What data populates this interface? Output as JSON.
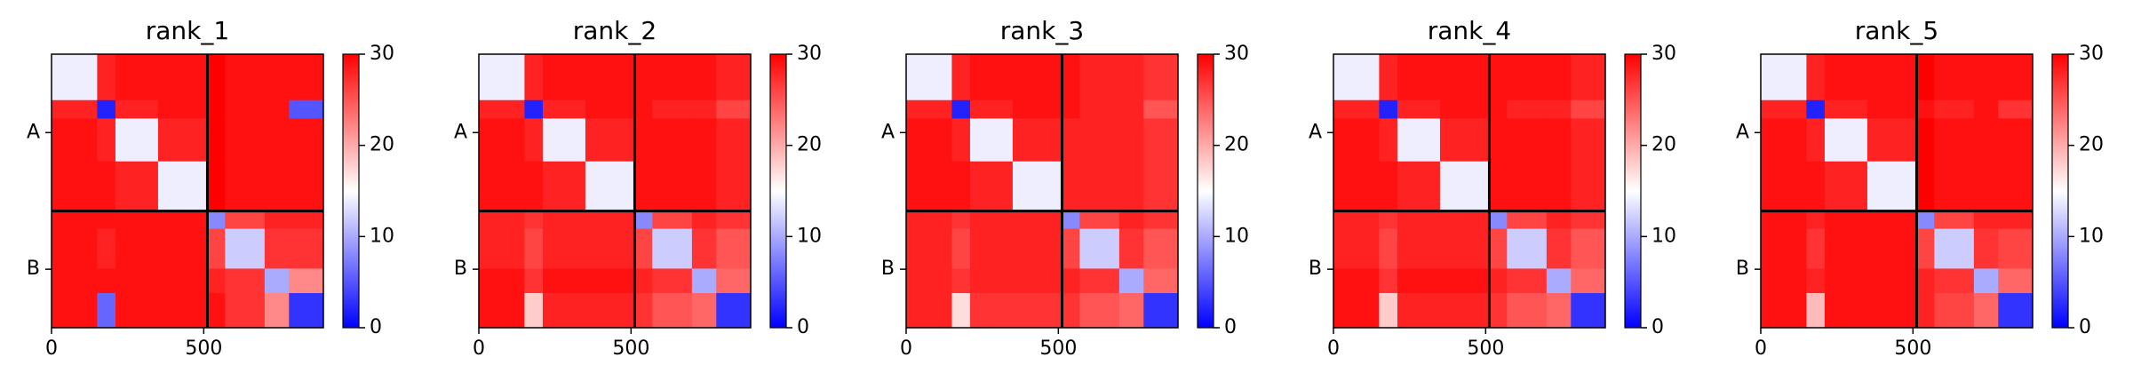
{
  "chart_data": [
    {
      "type": "heatmap",
      "title": "rank_1",
      "edges": [
        0,
        150,
        210,
        350,
        512,
        570,
        700,
        780,
        893
      ],
      "xlim": [
        0,
        893
      ],
      "ylim": [
        893,
        0
      ],
      "xticks": [
        0,
        500
      ],
      "yticks": [
        {
          "value": 256,
          "label": "A"
        },
        {
          "value": 702,
          "label": "B"
        }
      ],
      "boundaries": [
        512
      ],
      "colors": [
        "#0000ff",
        "#ffffff",
        "#ff0000"
      ],
      "clim": [
        0,
        30
      ],
      "cticks": [
        0,
        10,
        20,
        30
      ],
      "z": [
        [
          14,
          28,
          29,
          29,
          30,
          29,
          29,
          29
        ],
        [
          28,
          2,
          28,
          29,
          30,
          29,
          29,
          5
        ],
        [
          29,
          28,
          14,
          28,
          30,
          29,
          29,
          29
        ],
        [
          29,
          29,
          28,
          14,
          30,
          29,
          29,
          29
        ],
        [
          29,
          29,
          29,
          29,
          8,
          26,
          28,
          28
        ],
        [
          29,
          28,
          29,
          29,
          26,
          12,
          27,
          27
        ],
        [
          29,
          29,
          29,
          29,
          28,
          27,
          10,
          22
        ],
        [
          29,
          6,
          29,
          29,
          29,
          27,
          22,
          3
        ]
      ]
    },
    {
      "type": "heatmap",
      "title": "rank_2",
      "edges": [
        0,
        150,
        210,
        350,
        512,
        570,
        700,
        780,
        893
      ],
      "xlim": [
        0,
        893
      ],
      "ylim": [
        893,
        0
      ],
      "xticks": [
        0,
        500
      ],
      "yticks": [
        {
          "value": 256,
          "label": "A"
        },
        {
          "value": 702,
          "label": "B"
        }
      ],
      "boundaries": [
        512
      ],
      "colors": [
        "#0000ff",
        "#ffffff",
        "#ff0000"
      ],
      "clim": [
        0,
        30
      ],
      "cticks": [
        0,
        10,
        20,
        30
      ],
      "z": [
        [
          14,
          28,
          29,
          29,
          29,
          29,
          29,
          28
        ],
        [
          28,
          2,
          28,
          29,
          29,
          28,
          28,
          26
        ],
        [
          29,
          28,
          14,
          28,
          29,
          29,
          29,
          28
        ],
        [
          29,
          29,
          28,
          14,
          29,
          29,
          29,
          28
        ],
        [
          28,
          27,
          28,
          28,
          8,
          26,
          28,
          27
        ],
        [
          28,
          26,
          28,
          28,
          26,
          12,
          27,
          25
        ],
        [
          29,
          27,
          29,
          29,
          28,
          27,
          10,
          24
        ],
        [
          29,
          18,
          28,
          28,
          27,
          25,
          24,
          3
        ]
      ]
    },
    {
      "type": "heatmap",
      "title": "rank_3",
      "edges": [
        0,
        150,
        210,
        350,
        512,
        570,
        700,
        780,
        893
      ],
      "xlim": [
        0,
        893
      ],
      "ylim": [
        893,
        0
      ],
      "xticks": [
        0,
        500
      ],
      "yticks": [
        {
          "value": 256,
          "label": "A"
        },
        {
          "value": 702,
          "label": "B"
        }
      ],
      "boundaries": [
        512
      ],
      "colors": [
        "#0000ff",
        "#ffffff",
        "#ff0000"
      ],
      "clim": [
        0,
        30
      ],
      "cticks": [
        0,
        10,
        20,
        30
      ],
      "z": [
        [
          14,
          28,
          29,
          29,
          29,
          28,
          28,
          27
        ],
        [
          28,
          2,
          28,
          29,
          29,
          28,
          28,
          25
        ],
        [
          29,
          28,
          14,
          28,
          28,
          28,
          28,
          27
        ],
        [
          29,
          29,
          28,
          14,
          28,
          28,
          28,
          27
        ],
        [
          28,
          27,
          28,
          28,
          8,
          26,
          28,
          27
        ],
        [
          28,
          26,
          28,
          28,
          26,
          12,
          27,
          25
        ],
        [
          28,
          27,
          28,
          28,
          28,
          27,
          10,
          24
        ],
        [
          28,
          17,
          27,
          27,
          27,
          25,
          24,
          3
        ]
      ]
    },
    {
      "type": "heatmap",
      "title": "rank_4",
      "edges": [
        0,
        150,
        210,
        350,
        512,
        570,
        700,
        780,
        893
      ],
      "xlim": [
        0,
        893
      ],
      "ylim": [
        893,
        0
      ],
      "xticks": [
        0,
        500
      ],
      "yticks": [
        {
          "value": 256,
          "label": "A"
        },
        {
          "value": 702,
          "label": "B"
        }
      ],
      "boundaries": [
        512
      ],
      "colors": [
        "#0000ff",
        "#ffffff",
        "#ff0000"
      ],
      "clim": [
        0,
        30
      ],
      "cticks": [
        0,
        10,
        20,
        30
      ],
      "z": [
        [
          14,
          28,
          29,
          29,
          29,
          29,
          29,
          28
        ],
        [
          28,
          2,
          28,
          29,
          29,
          28,
          28,
          26
        ],
        [
          29,
          28,
          14,
          28,
          29,
          29,
          29,
          28
        ],
        [
          29,
          29,
          28,
          14,
          29,
          29,
          29,
          28
        ],
        [
          28,
          27,
          28,
          28,
          8,
          26,
          28,
          27
        ],
        [
          28,
          26,
          28,
          28,
          26,
          12,
          27,
          25
        ],
        [
          29,
          27,
          29,
          29,
          28,
          27,
          10,
          24
        ],
        [
          29,
          18,
          28,
          28,
          27,
          25,
          24,
          3
        ]
      ]
    },
    {
      "type": "heatmap",
      "title": "rank_5",
      "edges": [
        0,
        150,
        210,
        350,
        512,
        570,
        700,
        780,
        893
      ],
      "xlim": [
        0,
        893
      ],
      "ylim": [
        893,
        0
      ],
      "xticks": [
        0,
        500
      ],
      "yticks": [
        {
          "value": 256,
          "label": "A"
        },
        {
          "value": 702,
          "label": "B"
        }
      ],
      "boundaries": [
        512
      ],
      "colors": [
        "#0000ff",
        "#ffffff",
        "#ff0000"
      ],
      "clim": [
        0,
        30
      ],
      "cticks": [
        0,
        10,
        20,
        30
      ],
      "z": [
        [
          14,
          28,
          29,
          29,
          30,
          29,
          29,
          29
        ],
        [
          28,
          2,
          28,
          29,
          29,
          28,
          29,
          27
        ],
        [
          29,
          28,
          14,
          28,
          30,
          29,
          29,
          29
        ],
        [
          29,
          29,
          28,
          14,
          30,
          29,
          29,
          29
        ],
        [
          29,
          28,
          29,
          29,
          8,
          26,
          28,
          28
        ],
        [
          29,
          27,
          29,
          29,
          26,
          12,
          27,
          26
        ],
        [
          29,
          28,
          29,
          29,
          28,
          27,
          10,
          24
        ],
        [
          29,
          19,
          29,
          29,
          28,
          26,
          24,
          3
        ]
      ]
    }
  ]
}
